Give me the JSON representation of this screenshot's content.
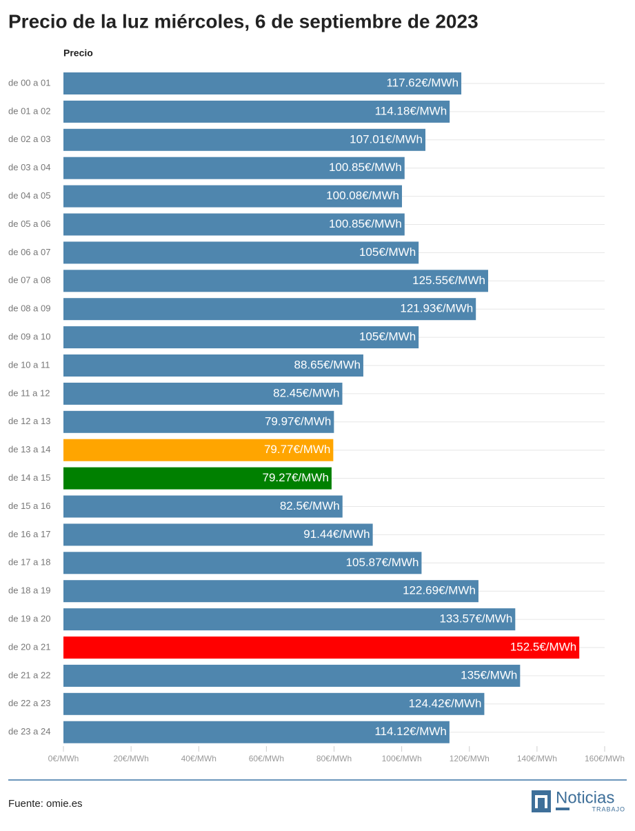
{
  "chart_data": {
    "type": "barh",
    "title": "Precio de la luz miércoles, 6 de septiembre de 2023",
    "column_header": "Precio",
    "categories": [
      "de 00 a 01",
      "de 01 a 02",
      "de 02 a 03",
      "de 03 a 04",
      "de 04 a 05",
      "de 05 a 06",
      "de 06 a 07",
      "de 07 a 08",
      "de 08 a 09",
      "de 09 a 10",
      "de 10 a 11",
      "de 11 a 12",
      "de 12 a 13",
      "de 13 a 14",
      "de 14 a 15",
      "de 15 a 16",
      "de 16 a 17",
      "de 17 a 18",
      "de 18 a 19",
      "de 19 a 20",
      "de 20 a 21",
      "de 21 a 22",
      "de 22 a 23",
      "de 23 a 24"
    ],
    "values": [
      117.62,
      114.18,
      107.01,
      100.85,
      100.08,
      100.85,
      105,
      125.55,
      121.93,
      105,
      88.65,
      82.45,
      79.97,
      79.77,
      79.27,
      82.5,
      91.44,
      105.87,
      122.69,
      133.57,
      152.5,
      135,
      124.42,
      114.12
    ],
    "value_labels": [
      "117.62€/MWh",
      "114.18€/MWh",
      "107.01€/MWh",
      "100.85€/MWh",
      "100.08€/MWh",
      "100.85€/MWh",
      "105€/MWh",
      "125.55€/MWh",
      "121.93€/MWh",
      "105€/MWh",
      "88.65€/MWh",
      "82.45€/MWh",
      "79.97€/MWh",
      "79.77€/MWh",
      "79.27€/MWh",
      "82.5€/MWh",
      "91.44€/MWh",
      "105.87€/MWh",
      "122.69€/MWh",
      "133.57€/MWh",
      "152.5€/MWh",
      "135€/MWh",
      "124.42€/MWh",
      "114.12€/MWh"
    ],
    "colors": [
      "#4f86ae",
      "#4f86ae",
      "#4f86ae",
      "#4f86ae",
      "#4f86ae",
      "#4f86ae",
      "#4f86ae",
      "#4f86ae",
      "#4f86ae",
      "#4f86ae",
      "#4f86ae",
      "#4f86ae",
      "#4f86ae",
      "#ffa500",
      "#008000",
      "#4f86ae",
      "#4f86ae",
      "#4f86ae",
      "#4f86ae",
      "#4f86ae",
      "#ff0000",
      "#4f86ae",
      "#4f86ae",
      "#4f86ae"
    ],
    "xlim": [
      0,
      160
    ],
    "xticks": [
      {
        "value": 0,
        "label": "0€/MWh"
      },
      {
        "value": 20,
        "label": "20€/MWh"
      },
      {
        "value": 40,
        "label": "40€/MWh"
      },
      {
        "value": 60,
        "label": "60€/MWh"
      },
      {
        "value": 80,
        "label": "80€/MWh"
      },
      {
        "value": 100,
        "label": "100€/MWh"
      },
      {
        "value": 120,
        "label": "120€/MWh"
      },
      {
        "value": 140,
        "label": "140€/MWh"
      },
      {
        "value": 160,
        "label": "160€/MWh"
      }
    ],
    "source": "Fuente: omie.es",
    "logo_title": "Noticias",
    "logo_subtitle": "TRABAJO"
  }
}
